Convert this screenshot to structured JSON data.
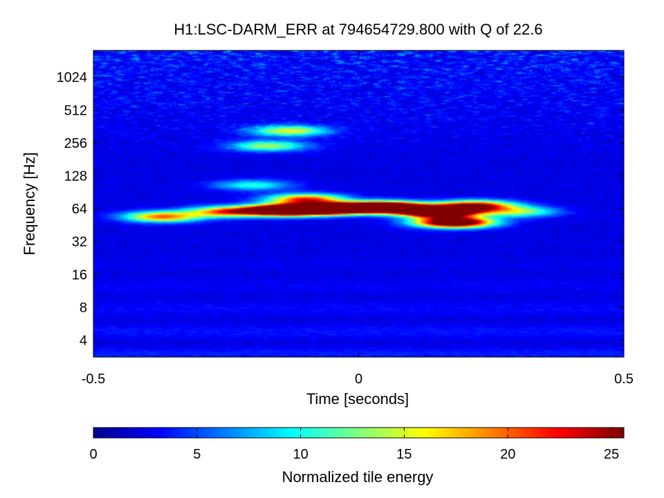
{
  "chart_data": {
    "type": "heatmap",
    "title": "H1:LSC-DARM_ERR at 794654729.800 with Q of 22.6",
    "xlabel": "Time [seconds]",
    "ylabel": "Frequency [Hz]",
    "x_scale": "linear",
    "y_scale": "log2",
    "xlim": [
      -0.5,
      0.5
    ],
    "ylim": [
      2.8,
      1800
    ],
    "x_ticks": [
      {
        "value": -0.5,
        "label": "-0.5"
      },
      {
        "value": 0,
        "label": "0"
      },
      {
        "value": 0.5,
        "label": "0.5"
      }
    ],
    "y_ticks": [
      {
        "value": 4,
        "label": "4"
      },
      {
        "value": 8,
        "label": "8"
      },
      {
        "value": 16,
        "label": "16"
      },
      {
        "value": 32,
        "label": "32"
      },
      {
        "value": 64,
        "label": "64"
      },
      {
        "value": 128,
        "label": "128"
      },
      {
        "value": 256,
        "label": "256"
      },
      {
        "value": 512,
        "label": "512"
      },
      {
        "value": 1024,
        "label": "1024"
      }
    ],
    "colormap": "jet",
    "colorbar": {
      "label": "Normalized tile energy",
      "range": [
        0,
        25.6
      ],
      "ticks": [
        {
          "value": 0,
          "label": "0"
        },
        {
          "value": 5,
          "label": "5"
        },
        {
          "value": 10,
          "label": "10"
        },
        {
          "value": 15,
          "label": "15"
        },
        {
          "value": 20,
          "label": "20"
        },
        {
          "value": 25,
          "label": "25"
        }
      ]
    },
    "background_level": 2.5,
    "features": [
      {
        "time": -0.14,
        "frequency": 62,
        "energy": 25.6
      },
      {
        "time": -0.05,
        "frequency": 64,
        "energy": 25.6
      },
      {
        "time": 0.05,
        "frequency": 66,
        "energy": 25.6
      },
      {
        "time": 0.15,
        "frequency": 60,
        "energy": 25.6
      },
      {
        "time": 0.18,
        "frequency": 48,
        "energy": 20
      },
      {
        "time": 0.22,
        "frequency": 68,
        "energy": 14
      },
      {
        "time": -0.25,
        "frequency": 60,
        "energy": 11
      },
      {
        "time": -0.37,
        "frequency": 54,
        "energy": 11
      },
      {
        "time": -0.1,
        "frequency": 78,
        "energy": 12
      },
      {
        "time": -0.17,
        "frequency": 240,
        "energy": 7
      },
      {
        "time": -0.13,
        "frequency": 330,
        "energy": 8
      },
      {
        "time": 0.3,
        "frequency": 60,
        "energy": 7
      },
      {
        "time": -0.2,
        "frequency": 105,
        "energy": 5
      }
    ]
  }
}
